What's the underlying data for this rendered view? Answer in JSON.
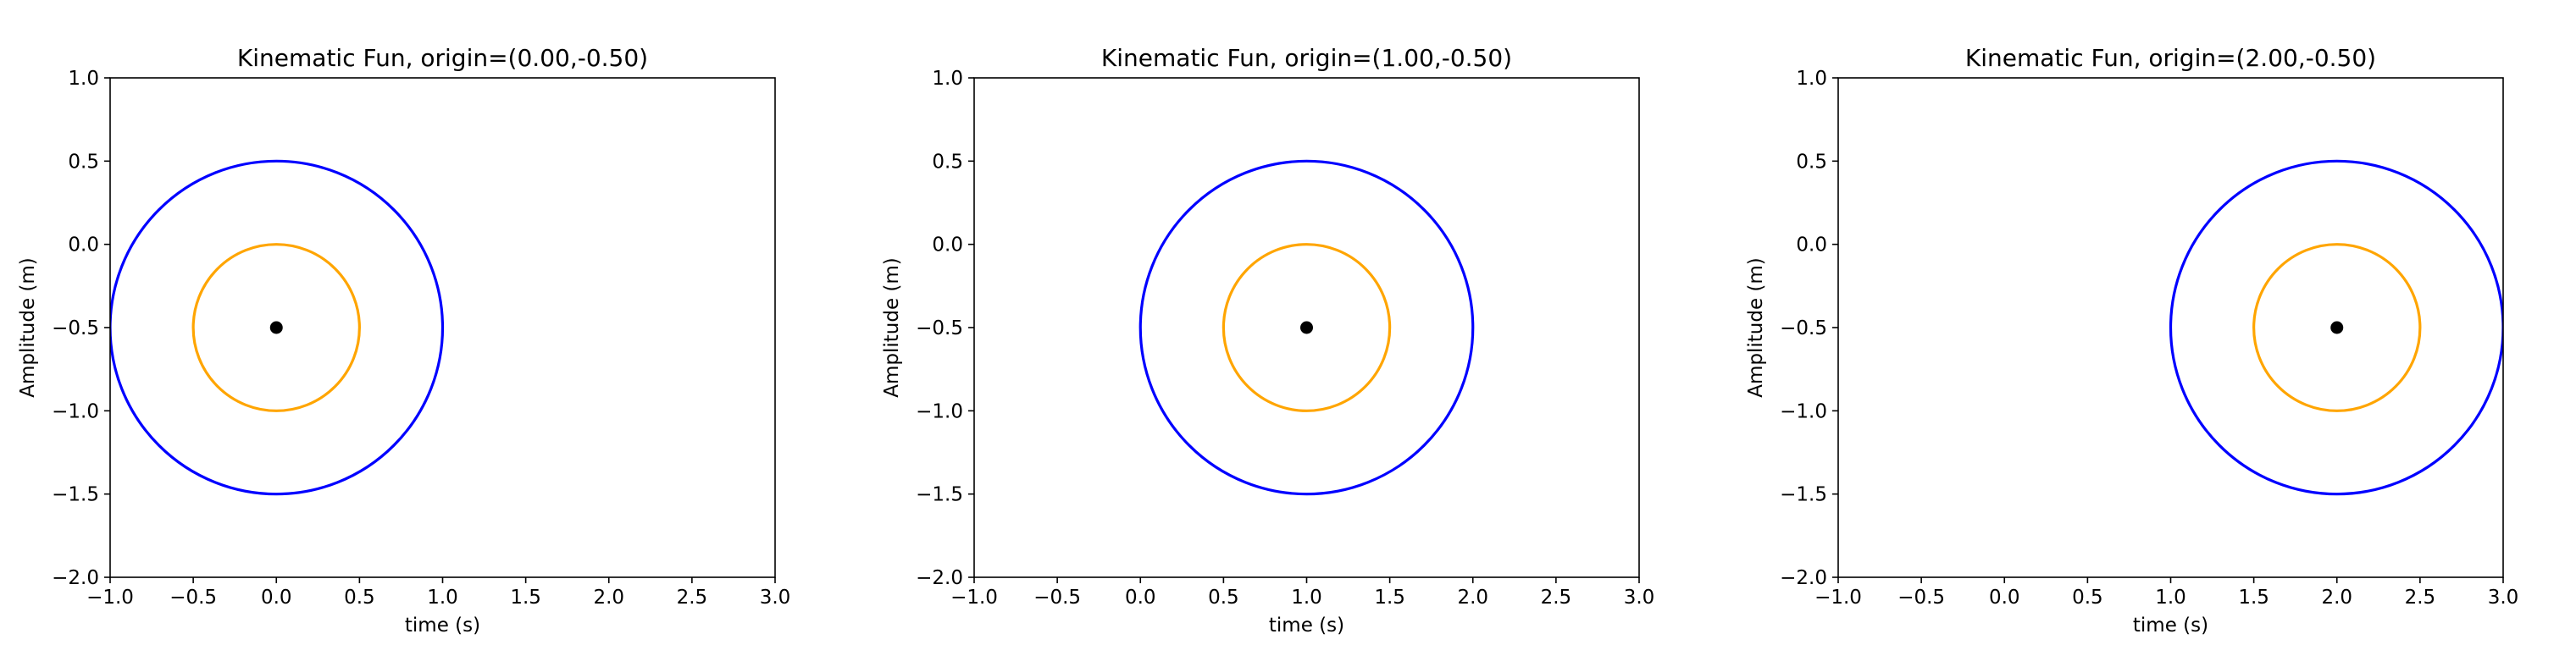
{
  "chart_data": [
    {
      "type": "line",
      "title": "Kinematic Fun, origin=(0.00,-0.50)",
      "xlabel": "time (s)",
      "ylabel": "Amplitude (m)",
      "xlim": [
        -1.0,
        3.0
      ],
      "ylim": [
        -2.0,
        1.0
      ],
      "xticks": [
        "−1.0",
        "−0.5",
        "0.0",
        "0.5",
        "1.0",
        "1.5",
        "2.0",
        "2.5",
        "3.0"
      ],
      "yticks": [
        "−2.0",
        "−1.5",
        "−1.0",
        "−0.5",
        "0.0",
        "0.5",
        "1.0"
      ],
      "grid": false,
      "circles": [
        {
          "center": [
            0.0,
            -0.5
          ],
          "radius": 1.0,
          "color": "#0000ff"
        },
        {
          "center": [
            0.0,
            -0.5
          ],
          "radius": 0.5,
          "color": "#ffa500"
        }
      ],
      "points": [
        {
          "x": 0.0,
          "y": -0.5,
          "color": "#000000"
        }
      ]
    },
    {
      "type": "line",
      "title": "Kinematic Fun, origin=(1.00,-0.50)",
      "xlabel": "time (s)",
      "ylabel": "Amplitude (m)",
      "xlim": [
        -1.0,
        3.0
      ],
      "ylim": [
        -2.0,
        1.0
      ],
      "xticks": [
        "−1.0",
        "−0.5",
        "0.0",
        "0.5",
        "1.0",
        "1.5",
        "2.0",
        "2.5",
        "3.0"
      ],
      "yticks": [
        "−2.0",
        "−1.5",
        "−1.0",
        "−0.5",
        "0.0",
        "0.5",
        "1.0"
      ],
      "grid": false,
      "circles": [
        {
          "center": [
            1.0,
            -0.5
          ],
          "radius": 1.0,
          "color": "#0000ff"
        },
        {
          "center": [
            1.0,
            -0.5
          ],
          "radius": 0.5,
          "color": "#ffa500"
        }
      ],
      "points": [
        {
          "x": 1.0,
          "y": -0.5,
          "color": "#000000"
        }
      ]
    },
    {
      "type": "line",
      "title": "Kinematic Fun, origin=(2.00,-0.50)",
      "xlabel": "time (s)",
      "ylabel": "Amplitude (m)",
      "xlim": [
        -1.0,
        3.0
      ],
      "ylim": [
        -2.0,
        1.0
      ],
      "xticks": [
        "−1.0",
        "−0.5",
        "0.0",
        "0.5",
        "1.0",
        "1.5",
        "2.0",
        "2.5",
        "3.0"
      ],
      "yticks": [
        "−2.0",
        "−1.5",
        "−1.0",
        "−0.5",
        "0.0",
        "0.5",
        "1.0"
      ],
      "grid": false,
      "circles": [
        {
          "center": [
            2.0,
            -0.5
          ],
          "radius": 1.0,
          "color": "#0000ff"
        },
        {
          "center": [
            2.0,
            -0.5
          ],
          "radius": 0.5,
          "color": "#ffa500"
        }
      ],
      "points": [
        {
          "x": 2.0,
          "y": -0.5,
          "color": "#000000"
        }
      ]
    }
  ]
}
